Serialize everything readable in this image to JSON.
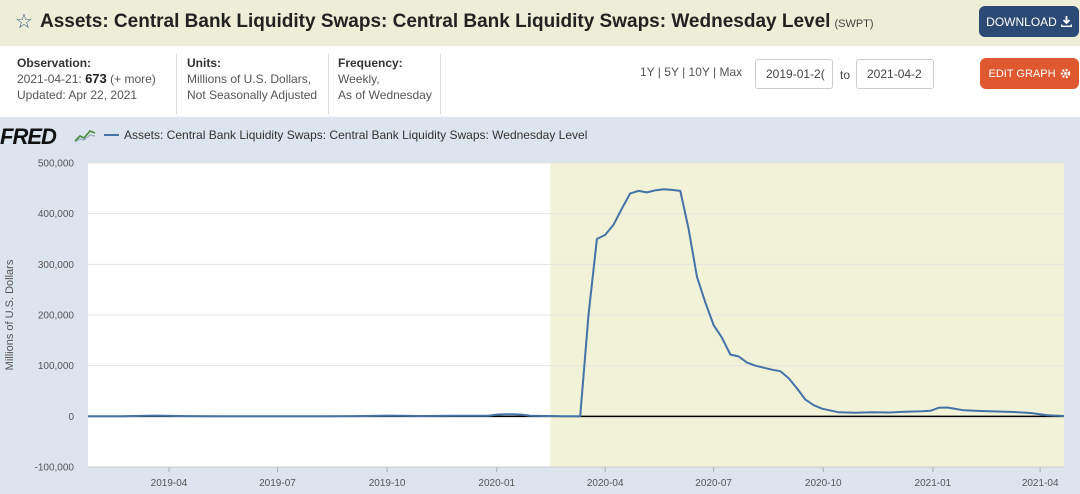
{
  "header": {
    "title": "Assets: Central Bank Liquidity Swaps: Central Bank Liquidity Swaps: Wednesday Level",
    "series_id": "(SWPT)",
    "download_label": "DOWNLOAD"
  },
  "meta": {
    "observation_label": "Observation:",
    "observation_date": "2021-04-21:",
    "observation_value": "673",
    "more": "(+ more)",
    "updated": "Updated: Apr 22, 2021",
    "units_label": "Units:",
    "units_line1": "Millions of U.S. Dollars,",
    "units_line2": "Not Seasonally Adjusted",
    "frequency_label": "Frequency:",
    "frequency_line1": "Weekly,",
    "frequency_line2": "As of Wednesday"
  },
  "controls": {
    "range_1y": "1Y",
    "range_5y": "5Y",
    "range_10y": "10Y",
    "range_max": "Max",
    "start_date": "2019-01-2(",
    "to_label": "to",
    "end_date": "2021-04-2",
    "edit_label": "EDIT GRAPH"
  },
  "logo": {
    "text": "FRED"
  },
  "chart_data": {
    "type": "line",
    "legend": "Assets: Central Bank Liquidity Swaps: Central Bank Liquidity Swaps: Wednesday Level",
    "ylabel": "Millions of U.S. Dollars",
    "xlabel": "",
    "ylim": [
      -100000,
      500000
    ],
    "yticks": [
      -100000,
      0,
      100000,
      200000,
      300000,
      400000,
      500000
    ],
    "ytick_labels": [
      "-100,000",
      "0",
      "100,000",
      "200,000",
      "300,000",
      "400,000",
      "500,000"
    ],
    "xticks": [
      "2019-04",
      "2019-07",
      "2019-10",
      "2020-01",
      "2020-04",
      "2020-07",
      "2020-10",
      "2021-01",
      "2021-04"
    ],
    "xlim": [
      "2019-01-23",
      "2021-04-21"
    ],
    "recession": {
      "start": "2020-02-15",
      "end": "2021-04-21",
      "color": "#f2f2d9"
    },
    "line_color": "#4572a7",
    "series": [
      {
        "name": "Assets: Central Bank Liquidity Swaps: Central Bank Liquidity Swaps: Wednesday Level",
        "x": [
          "2019-01-23",
          "2019-02-20",
          "2019-03-20",
          "2019-04-17",
          "2019-05-15",
          "2019-06-12",
          "2019-07-10",
          "2019-08-07",
          "2019-09-04",
          "2019-10-02",
          "2019-10-30",
          "2019-11-27",
          "2019-12-25",
          "2020-01-01",
          "2020-01-08",
          "2020-01-15",
          "2020-01-22",
          "2020-01-29",
          "2020-02-26",
          "2020-03-11",
          "2020-03-18",
          "2020-03-25",
          "2020-04-01",
          "2020-04-08",
          "2020-04-15",
          "2020-04-22",
          "2020-04-29",
          "2020-05-06",
          "2020-05-13",
          "2020-05-20",
          "2020-05-27",
          "2020-06-03",
          "2020-06-10",
          "2020-06-17",
          "2020-06-24",
          "2020-07-01",
          "2020-07-08",
          "2020-07-15",
          "2020-07-22",
          "2020-07-29",
          "2020-08-05",
          "2020-08-12",
          "2020-08-19",
          "2020-08-26",
          "2020-09-02",
          "2020-09-09",
          "2020-09-16",
          "2020-09-23",
          "2020-09-30",
          "2020-10-14",
          "2020-10-28",
          "2020-11-11",
          "2020-11-25",
          "2020-12-09",
          "2020-12-23",
          "2020-12-30",
          "2021-01-06",
          "2021-01-13",
          "2021-01-27",
          "2021-02-10",
          "2021-02-24",
          "2021-03-10",
          "2021-03-24",
          "2021-04-07",
          "2021-04-21"
        ],
        "values": [
          300,
          200,
          1500,
          400,
          200,
          300,
          300,
          200,
          400,
          1500,
          600,
          1000,
          1200,
          3500,
          4000,
          4000,
          3500,
          1000,
          300,
          300,
          200000,
          350000,
          358000,
          378000,
          410000,
          440000,
          445000,
          442000,
          446000,
          448000,
          447000,
          445000,
          370000,
          275000,
          225000,
          180000,
          155000,
          122000,
          118000,
          106000,
          100000,
          96000,
          92000,
          89000,
          75000,
          55000,
          33000,
          22000,
          15000,
          8000,
          7000,
          8000,
          7500,
          9000,
          10000,
          11000,
          17000,
          17500,
          12000,
          10500,
          9500,
          8500,
          6500,
          2000,
          673
        ]
      }
    ]
  }
}
